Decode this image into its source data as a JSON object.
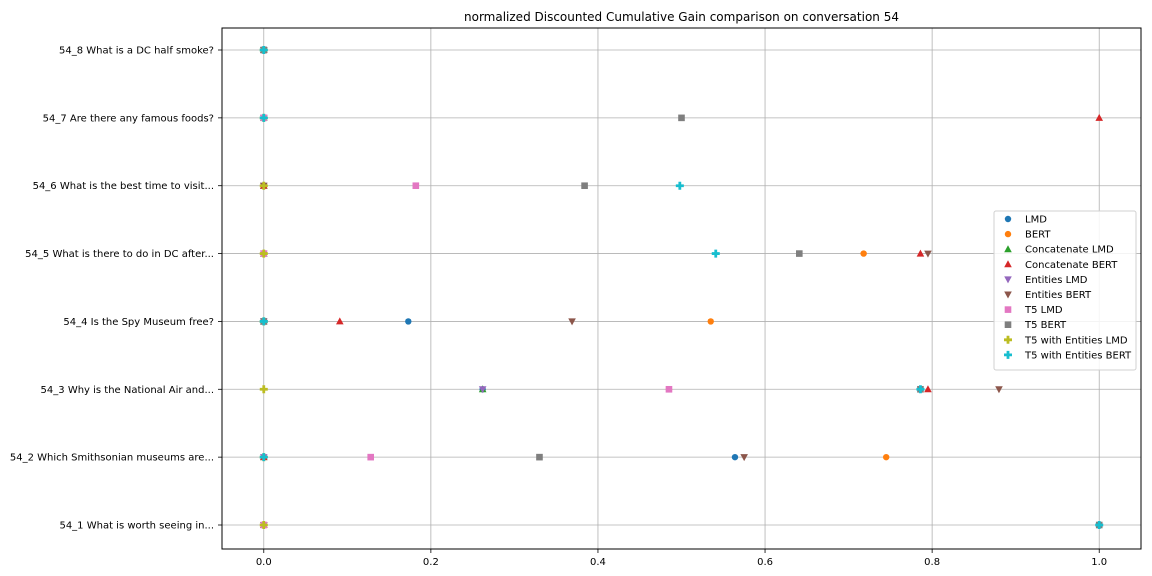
{
  "chart_data": {
    "type": "scatter",
    "title": "normalized Discounted Cumulative Gain comparison on conversation 54",
    "xlabel": "",
    "ylabel": "",
    "xlim": [
      -0.05,
      1.05
    ],
    "xticks": [
      "0.0",
      "0.2",
      "0.4",
      "0.6",
      "0.8",
      "1.0"
    ],
    "xtick_values": [
      0.0,
      0.2,
      0.4,
      0.6,
      0.8,
      1.0
    ],
    "categories": [
      "54_1 What is worth seeing in...",
      "54_2 Which Smithsonian museums are...",
      "54_3 Why is the National Air and...",
      "54_4 Is the Spy Museum free?",
      "54_5 What is there to do in DC after...",
      "54_6 What is the best time to visit...",
      "54_7 Are there any famous foods?",
      "54_8 What is a DC half smoke?"
    ],
    "grid": true,
    "legend_position": "center-right",
    "series": [
      {
        "name": "LMD",
        "marker": "circle",
        "color": "#1f77b4",
        "values": [
          0.0,
          0.564,
          0.262,
          0.173,
          0.0,
          0.0,
          0.0,
          0.0
        ]
      },
      {
        "name": "BERT",
        "marker": "circle",
        "color": "#ff7f0e",
        "values": [
          0.0,
          0.745,
          0.485,
          0.535,
          0.718,
          0.0,
          0.0,
          0.0
        ]
      },
      {
        "name": "Concatenate LMD",
        "marker": "triangle-up",
        "color": "#2ca02c",
        "values": [
          0.0,
          0.0,
          0.262,
          0.0,
          0.0,
          0.0,
          0.0,
          0.0
        ]
      },
      {
        "name": "Concatenate BERT",
        "marker": "triangle-up",
        "color": "#d62728",
        "values": [
          0.0,
          0.0,
          0.795,
          0.091,
          0.786,
          0.0,
          1.0,
          0.0
        ]
      },
      {
        "name": "Entities LMD",
        "marker": "triangle-down",
        "color": "#9467bd",
        "values": [
          0.0,
          0.0,
          0.262,
          0.0,
          0.0,
          0.0,
          0.0,
          0.0
        ]
      },
      {
        "name": "Entities BERT",
        "marker": "triangle-down",
        "color": "#8c564b",
        "values": [
          0.0,
          0.575,
          0.88,
          0.369,
          0.795,
          0.0,
          0.0,
          0.0
        ]
      },
      {
        "name": "T5 LMD",
        "marker": "square",
        "color": "#e377c2",
        "values": [
          0.0,
          0.128,
          0.485,
          0.0,
          0.0,
          0.182,
          0.0,
          0.0
        ]
      },
      {
        "name": "T5 BERT",
        "marker": "square",
        "color": "#7f7f7f",
        "values": [
          1.0,
          0.33,
          0.786,
          0.0,
          0.641,
          0.384,
          0.5,
          0.0
        ]
      },
      {
        "name": "T5 with Entities LMD",
        "marker": "plus",
        "color": "#bcbd22",
        "values": [
          0.0,
          0.0,
          0.0,
          0.0,
          0.0,
          0.0,
          0.0,
          0.0
        ]
      },
      {
        "name": "T5 with Entities BERT",
        "marker": "plus",
        "color": "#17becf",
        "values": [
          1.0,
          0.0,
          0.786,
          0.0,
          0.541,
          0.498,
          0.0,
          0.0
        ]
      }
    ]
  }
}
